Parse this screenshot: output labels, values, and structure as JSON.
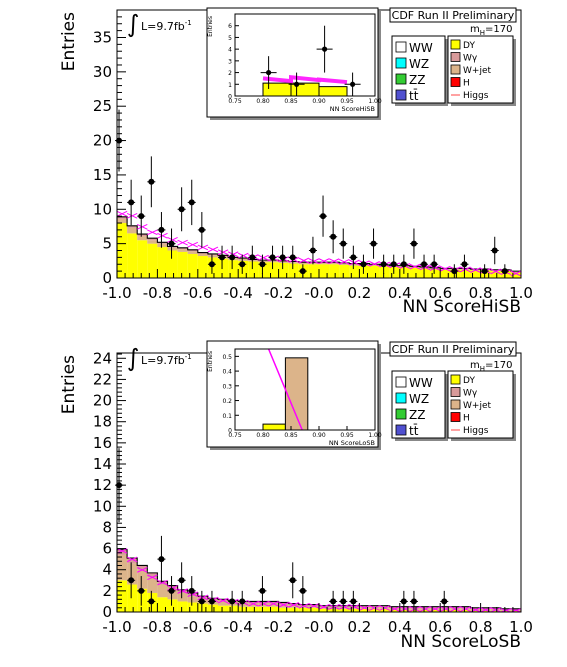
{
  "colors": {
    "DY": "#ffff00",
    "Wgamma": "#d89a9a",
    "Wjet": "#dcb48a",
    "H": "#ff0000",
    "WW": "#ffffff",
    "WZ": "#00ffff",
    "ZZ": "#33cc33",
    "tt": "#5050d0",
    "Higgs": "#ff00ff",
    "data": "#000000"
  },
  "chart_data": [
    {
      "type": "bar",
      "title": "CDF Run II Preliminary",
      "mass_label": "m",
      "mass_sub": "H",
      "mass_value": "=170",
      "lumi_label": "L=9.7fb",
      "lumi_sup": "-1",
      "xlabel": "NN ScoreHiSB",
      "ylabel": "Entries",
      "xlim": [
        -1.0,
        1.0
      ],
      "ylim": [
        0,
        39
      ],
      "yticks": [
        0,
        5,
        10,
        15,
        20,
        25,
        30,
        35
      ],
      "xticks": [
        -1.0,
        -0.8,
        -0.6,
        -0.4,
        -0.2,
        -0.0,
        0.2,
        0.4,
        0.6,
        0.8,
        1.0
      ],
      "xtick_labels": [
        "-1.0",
        "-0.8",
        "-0.6",
        "-0.4",
        "-0.2",
        "-0.0",
        "0.2",
        "0.4",
        "0.6",
        "0.8",
        "1.0"
      ],
      "legend_left": [
        {
          "key": "WW",
          "label": "WW"
        },
        {
          "key": "WZ",
          "label": "WZ"
        },
        {
          "key": "ZZ",
          "label": "ZZ"
        },
        {
          "key": "tt",
          "label": "tt̄"
        }
      ],
      "legend_right": [
        {
          "key": "DY",
          "label": "DY"
        },
        {
          "key": "Wgamma",
          "label": "Wγ"
        },
        {
          "key": "Wjet",
          "label": "W+jet"
        },
        {
          "key": "H",
          "label": "H"
        },
        {
          "key": "Higgs",
          "label": "Higgs"
        }
      ],
      "bin_edges": [
        -1.0,
        -0.95,
        -0.9,
        -0.85,
        -0.8,
        -0.75,
        -0.7,
        -0.65,
        -0.6,
        -0.55,
        -0.5,
        -0.45,
        -0.4,
        -0.35,
        -0.3,
        -0.25,
        -0.2,
        -0.15,
        -0.1,
        -0.05,
        0.0,
        0.05,
        0.1,
        0.15,
        0.2,
        0.25,
        0.3,
        0.35,
        0.4,
        0.45,
        0.5,
        0.55,
        0.6,
        0.65,
        0.7,
        0.75,
        0.8,
        0.85,
        0.9,
        0.95,
        1.0
      ],
      "stack": [
        {
          "key": "DY",
          "values": [
            8.0,
            6.5,
            5.5,
            5.0,
            4.5,
            4.0,
            3.8,
            3.5,
            3.2,
            3.0,
            2.8,
            2.6,
            2.5,
            2.4,
            2.3,
            2.3,
            2.2,
            2.1,
            2.0,
            2.0,
            2.0,
            2.0,
            1.9,
            1.8,
            1.8,
            1.8,
            1.7,
            1.6,
            1.6,
            1.5,
            1.4,
            1.3,
            1.2,
            1.2,
            1.2,
            1.1,
            1.1,
            1.0,
            1.0,
            0.8
          ]
        },
        {
          "key": "Wjet",
          "values": [
            0.6,
            0.8,
            0.6,
            0.5,
            0.5,
            0.4,
            0.4,
            0.4,
            0.3,
            0.3,
            0.3,
            0.3,
            0.3,
            0.2,
            0.2,
            0.2,
            0.2,
            0.2,
            0.2,
            0.2,
            0.2,
            0.2,
            0.2,
            0.2,
            0.2,
            0.1,
            0.1,
            0.1,
            0.1,
            0.1,
            0.1,
            0.1,
            0.1,
            0.1,
            0.1,
            0.1,
            0.1,
            0.1,
            0.1,
            0.1
          ]
        },
        {
          "key": "Wgamma",
          "values": [
            0.3,
            0.3,
            0.3,
            0.3,
            0.2,
            0.2,
            0.2,
            0.2,
            0.2,
            0.2,
            0.2,
            0.1,
            0.1,
            0.1,
            0.1,
            0.1,
            0.1,
            0.1,
            0.1,
            0.1,
            0.1,
            0.1,
            0.1,
            0.1,
            0.1,
            0.1,
            0.1,
            0.1,
            0.1,
            0.1,
            0.1,
            0.1,
            0.1,
            0.1,
            0.1,
            0.1,
            0.1,
            0.1,
            0.1,
            0.1
          ]
        }
      ],
      "higgs_band": [
        9.7,
        9.4,
        7.8,
        7.0,
        6.5,
        5.9,
        5.5,
        5.2,
        4.8,
        4.5,
        4.1,
        3.8,
        3.6,
        3.4,
        3.3,
        3.2,
        3.1,
        3.0,
        2.9,
        2.8,
        2.8,
        2.8,
        2.7,
        2.6,
        2.5,
        2.4,
        2.3,
        2.2,
        2.1,
        2.0,
        1.9,
        1.8,
        1.7,
        1.6,
        1.6,
        1.5,
        1.4,
        1.3,
        1.2,
        1.0
      ],
      "points": [
        {
          "x": -0.99,
          "y": 20,
          "err": 4.5
        },
        {
          "x": -0.93,
          "y": 11,
          "err": 3.3
        },
        {
          "x": -0.88,
          "y": 9,
          "err": 3.0
        },
        {
          "x": -0.83,
          "y": 14,
          "err": 3.7
        },
        {
          "x": -0.78,
          "y": 7,
          "err": 2.6
        },
        {
          "x": -0.73,
          "y": 5,
          "err": 2.2
        },
        {
          "x": -0.68,
          "y": 10,
          "err": 3.2
        },
        {
          "x": -0.63,
          "y": 11,
          "err": 3.3
        },
        {
          "x": -0.58,
          "y": 7,
          "err": 2.6
        },
        {
          "x": -0.53,
          "y": 2,
          "err": 1.4
        },
        {
          "x": -0.48,
          "y": 3,
          "err": 1.7
        },
        {
          "x": -0.43,
          "y": 3,
          "err": 1.7
        },
        {
          "x": -0.38,
          "y": 2,
          "err": 1.4
        },
        {
          "x": -0.33,
          "y": 3,
          "err": 1.7
        },
        {
          "x": -0.28,
          "y": 2,
          "err": 1.4
        },
        {
          "x": -0.23,
          "y": 3,
          "err": 1.7
        },
        {
          "x": -0.18,
          "y": 3,
          "err": 1.7
        },
        {
          "x": -0.13,
          "y": 3,
          "err": 1.7
        },
        {
          "x": -0.08,
          "y": 1,
          "err": 1.0
        },
        {
          "x": -0.03,
          "y": 4,
          "err": 2.0
        },
        {
          "x": 0.02,
          "y": 9,
          "err": 3.0
        },
        {
          "x": 0.07,
          "y": 6,
          "err": 2.4
        },
        {
          "x": 0.12,
          "y": 5,
          "err": 2.2
        },
        {
          "x": 0.17,
          "y": 3,
          "err": 1.7
        },
        {
          "x": 0.22,
          "y": 2,
          "err": 1.4
        },
        {
          "x": 0.27,
          "y": 5,
          "err": 2.2
        },
        {
          "x": 0.32,
          "y": 2,
          "err": 1.4
        },
        {
          "x": 0.37,
          "y": 2,
          "err": 1.4
        },
        {
          "x": 0.42,
          "y": 2,
          "err": 1.4
        },
        {
          "x": 0.47,
          "y": 5,
          "err": 2.2
        },
        {
          "x": 0.52,
          "y": 2,
          "err": 1.4
        },
        {
          "x": 0.57,
          "y": 2,
          "err": 1.4
        },
        {
          "x": 0.67,
          "y": 1,
          "err": 1.0
        },
        {
          "x": 0.72,
          "y": 2,
          "err": 1.4
        },
        {
          "x": 0.82,
          "y": 1,
          "err": 1.0
        },
        {
          "x": 0.87,
          "y": 4,
          "err": 2.0
        },
        {
          "x": 0.92,
          "y": 1,
          "err": 1.0
        }
      ],
      "inset": {
        "xlabel": "NN ScoreHiSB",
        "ylabel": "Entries",
        "xlim": [
          0.75,
          1.0
        ],
        "ylim": [
          0,
          7
        ],
        "yticks": [
          0,
          1,
          2,
          3,
          4,
          5,
          6
        ],
        "xticks": [
          0.75,
          0.8,
          0.85,
          0.9,
          0.95,
          1.0
        ],
        "xtick_labels": [
          "0.75",
          "0.80",
          "0.85",
          "0.90",
          "0.95",
          "1.00"
        ],
        "bin_edges": [
          0.8,
          0.85,
          0.9,
          0.95
        ],
        "bg_values": [
          1.1,
          1.1,
          0.8
        ],
        "higgs_band": [
          1.5,
          1.6,
          1.4
        ],
        "points": [
          {
            "x": 0.81,
            "y": 2,
            "err": 1.4
          },
          {
            "x": 0.86,
            "y": 1,
            "err": 1.0
          },
          {
            "x": 0.91,
            "y": 4,
            "err": 2.0
          },
          {
            "x": 0.96,
            "y": 1,
            "err": 1.0
          }
        ]
      }
    },
    {
      "type": "bar",
      "title": "CDF Run II Preliminary",
      "mass_label": "m",
      "mass_sub": "H",
      "mass_value": "=170",
      "lumi_label": "L=9.7fb",
      "lumi_sup": "-1",
      "xlabel": "NN ScoreLoSB",
      "ylabel": "Entries",
      "xlim": [
        -1.0,
        1.0
      ],
      "ylim": [
        0,
        24.5
      ],
      "yticks": [
        0,
        2,
        4,
        6,
        8,
        10,
        12,
        14,
        16,
        18,
        20,
        22,
        24
      ],
      "xticks": [
        -1.0,
        -0.8,
        -0.6,
        -0.4,
        -0.2,
        -0.0,
        0.2,
        0.4,
        0.6,
        0.8,
        1.0
      ],
      "xtick_labels": [
        "-1.0",
        "-0.8",
        "-0.6",
        "-0.4",
        "-0.2",
        "-0.0",
        "0.2",
        "0.4",
        "0.6",
        "0.8",
        "1.0"
      ],
      "legend_left": [
        {
          "key": "WW",
          "label": "WW"
        },
        {
          "key": "WZ",
          "label": "WZ"
        },
        {
          "key": "ZZ",
          "label": "ZZ"
        },
        {
          "key": "tt",
          "label": "tt̄"
        }
      ],
      "legend_right": [
        {
          "key": "DY",
          "label": "DY"
        },
        {
          "key": "Wgamma",
          "label": "Wγ"
        },
        {
          "key": "Wjet",
          "label": "W+jet"
        },
        {
          "key": "H",
          "label": "H"
        },
        {
          "key": "Higgs",
          "label": "Higgs"
        }
      ],
      "bin_edges": [
        -1.0,
        -0.95,
        -0.9,
        -0.85,
        -0.8,
        -0.75,
        -0.7,
        -0.65,
        -0.6,
        -0.55,
        -0.5,
        -0.45,
        -0.4,
        -0.35,
        -0.3,
        -0.25,
        -0.2,
        -0.15,
        -0.1,
        -0.05,
        0.0,
        0.05,
        0.1,
        0.15,
        0.2,
        0.25,
        0.3,
        0.35,
        0.4,
        0.45,
        0.5,
        0.55,
        0.6,
        0.65,
        0.7,
        0.75,
        0.8,
        0.85,
        0.9,
        0.95,
        1.0
      ],
      "stack": [
        {
          "key": "DY",
          "values": [
            3.0,
            2.6,
            2.2,
            1.8,
            1.4,
            1.2,
            1.0,
            0.9,
            0.8,
            0.7,
            0.6,
            0.6,
            0.5,
            0.5,
            0.5,
            0.5,
            0.4,
            0.4,
            0.4,
            0.4,
            0.3,
            0.3,
            0.3,
            0.3,
            0.3,
            0.3,
            0.3,
            0.2,
            0.2,
            0.2,
            0.2,
            0.2,
            0.2,
            0.2,
            0.2,
            0.1,
            0.1,
            0.1,
            0.1,
            0.1
          ]
        },
        {
          "key": "Wjet",
          "values": [
            2.4,
            2.0,
            1.8,
            1.5,
            1.2,
            1.0,
            0.8,
            0.6,
            0.5,
            0.4,
            0.4,
            0.3,
            0.3,
            0.3,
            0.3,
            0.3,
            0.3,
            0.3,
            0.2,
            0.2,
            0.2,
            0.2,
            0.2,
            0.2,
            0.2,
            0.2,
            0.2,
            0.2,
            0.2,
            0.2,
            0.2,
            0.2,
            0.2,
            0.2,
            0.2,
            0.2,
            0.2,
            0.2,
            0.1,
            0.1
          ]
        },
        {
          "key": "Wgamma",
          "values": [
            0.5,
            0.5,
            0.4,
            0.4,
            0.3,
            0.3,
            0.3,
            0.3,
            0.2,
            0.2,
            0.2,
            0.2,
            0.2,
            0.2,
            0.2,
            0.2,
            0.2,
            0.1,
            0.1,
            0.1,
            0.1,
            0.1,
            0.1,
            0.1,
            0.1,
            0.1,
            0.1,
            0.1,
            0.1,
            0.1,
            0.1,
            0.1,
            0.1,
            0.1,
            0.1,
            0.1,
            0.1,
            0.1,
            0.1,
            0.1
          ]
        }
      ],
      "higgs_band": [
        6.0,
        5.2,
        4.2,
        3.5,
        3.0,
        2.5,
        2.2,
        1.9,
        1.6,
        1.4,
        1.3,
        1.2,
        1.1,
        1.0,
        1.0,
        1.0,
        0.9,
        0.9,
        0.8,
        0.8,
        0.7,
        0.7,
        0.7,
        0.7,
        0.6,
        0.6,
        0.6,
        0.5,
        0.5,
        0.5,
        0.5,
        0.5,
        0.5,
        0.5,
        0.5,
        0.4,
        0.4,
        0.4,
        0.3,
        0.3
      ],
      "points": [
        {
          "x": -0.99,
          "y": 12,
          "err": 3.5
        },
        {
          "x": -0.93,
          "y": 3,
          "err": 1.7
        },
        {
          "x": -0.88,
          "y": 2,
          "err": 1.4
        },
        {
          "x": -0.83,
          "y": 1,
          "err": 1.0
        },
        {
          "x": -0.78,
          "y": 5,
          "err": 2.2
        },
        {
          "x": -0.73,
          "y": 2,
          "err": 1.4
        },
        {
          "x": -0.68,
          "y": 3,
          "err": 1.7
        },
        {
          "x": -0.63,
          "y": 2,
          "err": 1.4
        },
        {
          "x": -0.58,
          "y": 1,
          "err": 1.0
        },
        {
          "x": -0.53,
          "y": 1,
          "err": 1.0
        },
        {
          "x": -0.43,
          "y": 1,
          "err": 1.0
        },
        {
          "x": -0.38,
          "y": 1,
          "err": 1.0
        },
        {
          "x": -0.28,
          "y": 2,
          "err": 1.4
        },
        {
          "x": -0.13,
          "y": 3,
          "err": 1.7
        },
        {
          "x": -0.08,
          "y": 2,
          "err": 1.4
        },
        {
          "x": 0.07,
          "y": 1,
          "err": 1.0
        },
        {
          "x": 0.12,
          "y": 1,
          "err": 1.0
        },
        {
          "x": 0.17,
          "y": 1,
          "err": 1.0
        },
        {
          "x": 0.42,
          "y": 1,
          "err": 1.0
        },
        {
          "x": 0.47,
          "y": 1,
          "err": 1.0
        },
        {
          "x": 0.62,
          "y": 1,
          "err": 1.0
        }
      ],
      "inset": {
        "xlabel": "NN ScoreLoSB",
        "ylabel": "Entries",
        "xlim": [
          0.75,
          1.0
        ],
        "ylim": [
          0,
          0.55
        ],
        "yticks": [
          0,
          0.1,
          0.2,
          0.3,
          0.4,
          0.5
        ],
        "ytick_labels": [
          "0",
          "0.1",
          "0.2",
          "0.3",
          "0.4",
          "0.5"
        ],
        "xticks": [
          0.75,
          0.8,
          0.85,
          0.9,
          0.95,
          1.0
        ],
        "xtick_labels": [
          "0.75",
          "0.80",
          "0.85",
          "0.90",
          "0.95",
          "1.00"
        ],
        "bin_edges": [
          0.8,
          0.84,
          0.88
        ],
        "bg_values": [
          0.04,
          0.49
        ],
        "higgs_line": [
          [
            0.81,
            0.55
          ],
          [
            0.87,
            0.0
          ]
        ],
        "points": []
      }
    }
  ]
}
